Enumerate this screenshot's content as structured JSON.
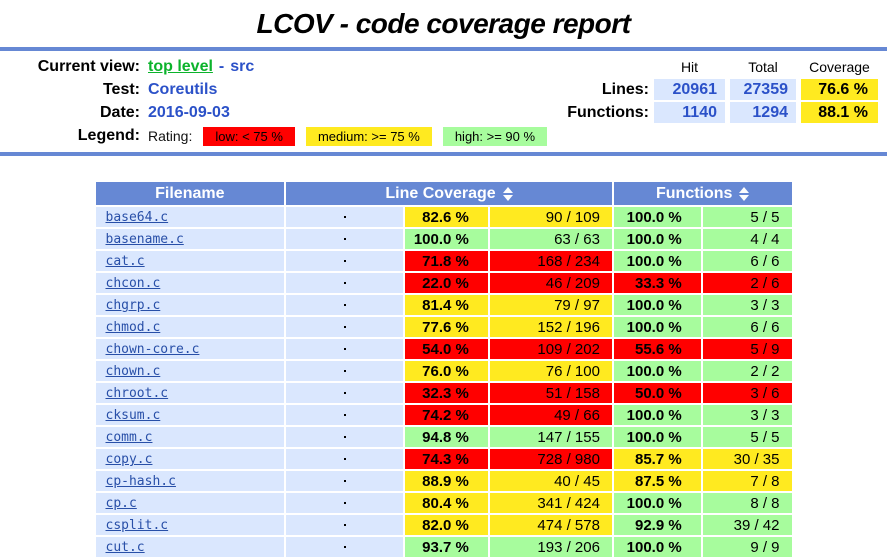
{
  "title": "LCOV - code coverage report",
  "header": {
    "current_view_label": "Current view:",
    "current_view_link": "top level",
    "current_view_separator": "-",
    "current_view_page": "src",
    "test_label": "Test:",
    "test_value": "Coreutils",
    "date_label": "Date:",
    "date_value": "2016-09-03",
    "legend_label": "Legend:",
    "rating_label": "Rating:",
    "legend_items": [
      {
        "name": "low",
        "label": "low: < 75 %",
        "color": "#ff0000"
      },
      {
        "name": "medium",
        "label": "medium: >= 75 %",
        "color": "#ffea20"
      },
      {
        "name": "high",
        "label": "high: >= 90 %",
        "color": "#a7fc9d"
      }
    ],
    "summary": {
      "columns": {
        "hit": "Hit",
        "total": "Total",
        "coverage": "Coverage"
      },
      "rows": [
        {
          "label": "Lines:",
          "hit": "20961",
          "total": "27359",
          "coverage": "76.6 %"
        },
        {
          "label": "Functions:",
          "hit": "1140",
          "total": "1294",
          "coverage": "88.1 %"
        }
      ]
    }
  },
  "table": {
    "columns": {
      "filename": "Filename",
      "line_coverage": "Line Coverage",
      "functions": "Functions"
    },
    "rows": [
      {
        "file": "base64.c",
        "line_pct": "82.6 %",
        "line_pct_num": 82.6,
        "line_ratio": "90 / 109",
        "line_rating": "med",
        "func_pct": "100.0 %",
        "func_ratio": "5 / 5",
        "func_rating": "hi"
      },
      {
        "file": "basename.c",
        "line_pct": "100.0 %",
        "line_pct_num": 100.0,
        "line_ratio": "63 / 63",
        "line_rating": "hi",
        "func_pct": "100.0 %",
        "func_ratio": "4 / 4",
        "func_rating": "hi"
      },
      {
        "file": "cat.c",
        "line_pct": "71.8 %",
        "line_pct_num": 71.8,
        "line_ratio": "168 / 234",
        "line_rating": "lo",
        "func_pct": "100.0 %",
        "func_ratio": "6 / 6",
        "func_rating": "hi"
      },
      {
        "file": "chcon.c",
        "line_pct": "22.0 %",
        "line_pct_num": 22.0,
        "line_ratio": "46 / 209",
        "line_rating": "lo",
        "func_pct": "33.3 %",
        "func_ratio": "2 / 6",
        "func_rating": "lo"
      },
      {
        "file": "chgrp.c",
        "line_pct": "81.4 %",
        "line_pct_num": 81.4,
        "line_ratio": "79 / 97",
        "line_rating": "med",
        "func_pct": "100.0 %",
        "func_ratio": "3 / 3",
        "func_rating": "hi"
      },
      {
        "file": "chmod.c",
        "line_pct": "77.6 %",
        "line_pct_num": 77.6,
        "line_ratio": "152 / 196",
        "line_rating": "med",
        "func_pct": "100.0 %",
        "func_ratio": "6 / 6",
        "func_rating": "hi"
      },
      {
        "file": "chown-core.c",
        "line_pct": "54.0 %",
        "line_pct_num": 54.0,
        "line_ratio": "109 / 202",
        "line_rating": "lo",
        "func_pct": "55.6 %",
        "func_ratio": "5 / 9",
        "func_rating": "lo"
      },
      {
        "file": "chown.c",
        "line_pct": "76.0 %",
        "line_pct_num": 76.0,
        "line_ratio": "76 / 100",
        "line_rating": "med",
        "func_pct": "100.0 %",
        "func_ratio": "2 / 2",
        "func_rating": "hi"
      },
      {
        "file": "chroot.c",
        "line_pct": "32.3 %",
        "line_pct_num": 32.3,
        "line_ratio": "51 / 158",
        "line_rating": "lo",
        "func_pct": "50.0 %",
        "func_ratio": "3 / 6",
        "func_rating": "lo"
      },
      {
        "file": "cksum.c",
        "line_pct": "74.2 %",
        "line_pct_num": 74.2,
        "line_ratio": "49 / 66",
        "line_rating": "lo",
        "func_pct": "100.0 %",
        "func_ratio": "3 / 3",
        "func_rating": "hi"
      },
      {
        "file": "comm.c",
        "line_pct": "94.8 %",
        "line_pct_num": 94.8,
        "line_ratio": "147 / 155",
        "line_rating": "hi",
        "func_pct": "100.0 %",
        "func_ratio": "5 / 5",
        "func_rating": "hi"
      },
      {
        "file": "copy.c",
        "line_pct": "74.3 %",
        "line_pct_num": 74.3,
        "line_ratio": "728 / 980",
        "line_rating": "lo",
        "func_pct": "85.7 %",
        "func_ratio": "30 / 35",
        "func_rating": "med"
      },
      {
        "file": "cp-hash.c",
        "line_pct": "88.9 %",
        "line_pct_num": 88.9,
        "line_ratio": "40 / 45",
        "line_rating": "med",
        "func_pct": "87.5 %",
        "func_ratio": "7 / 8",
        "func_rating": "med"
      },
      {
        "file": "cp.c",
        "line_pct": "80.4 %",
        "line_pct_num": 80.4,
        "line_ratio": "341 / 424",
        "line_rating": "med",
        "func_pct": "100.0 %",
        "func_ratio": "8 / 8",
        "func_rating": "hi"
      },
      {
        "file": "csplit.c",
        "line_pct": "82.0 %",
        "line_pct_num": 82.0,
        "line_ratio": "474 / 578",
        "line_rating": "med",
        "func_pct": "92.9 %",
        "func_ratio": "39 / 42",
        "func_rating": "hi"
      },
      {
        "file": "cut.c",
        "line_pct": "93.7 %",
        "line_pct_num": 93.7,
        "line_ratio": "193 / 206",
        "line_rating": "hi",
        "func_pct": "100.0 %",
        "func_ratio": "9 / 9",
        "func_rating": "hi"
      }
    ]
  },
  "colors": {
    "ruler": "#6688d4",
    "table_header_bg": "#6688d4",
    "cell_light_blue": "#dae7fe",
    "rating_high_bg": "#a7fc9d",
    "rating_medium_bg": "#ffea20",
    "rating_low_bg": "#ff0000",
    "bar_fill_high": "#20e25d",
    "bar_fill_medium": "#ffd95f",
    "bar_fill_low": "#fc3a2c",
    "link_green": "#0bb32b",
    "value_blue": "#2b51c8",
    "file_link_blue": "#284fa8"
  }
}
